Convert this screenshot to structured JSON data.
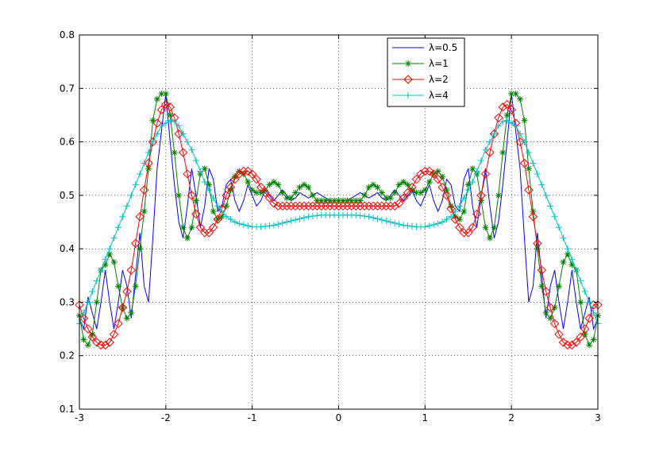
{
  "chart_data": {
    "type": "line",
    "title": "",
    "xlabel": "",
    "ylabel": "",
    "xlim": [
      -3,
      3
    ],
    "ylim": [
      0.1,
      0.8
    ],
    "xticks": [
      "-3",
      "-2",
      "-1",
      "0",
      "1",
      "2",
      "3"
    ],
    "yticks": [
      "0.1",
      "0.2",
      "0.3",
      "0.4",
      "0.5",
      "0.6",
      "0.7",
      "0.8"
    ],
    "grid": true,
    "legend_position": "top-right",
    "series": [
      {
        "name": "λ=0.5",
        "color": "#0000ff",
        "marker": "none",
        "x": [
          -3.0,
          -2.95,
          -2.9,
          -2.85,
          -2.8,
          -2.75,
          -2.7,
          -2.65,
          -2.6,
          -2.55,
          -2.5,
          -2.45,
          -2.4,
          -2.35,
          -2.3,
          -2.25,
          -2.2,
          -2.15,
          -2.1,
          -2.05,
          -2.0,
          -1.95,
          -1.9,
          -1.85,
          -1.8,
          -1.75,
          -1.7,
          -1.65,
          -1.6,
          -1.55,
          -1.5,
          -1.45,
          -1.4,
          -1.35,
          -1.3,
          -1.25,
          -1.2,
          -1.15,
          -1.1,
          -1.05,
          -1.0,
          -0.95,
          -0.9,
          -0.85,
          -0.8,
          -0.75,
          -0.7,
          -0.65,
          -0.6,
          -0.55,
          -0.5,
          -0.45,
          -0.4,
          -0.35,
          -0.3,
          -0.25,
          -0.2,
          -0.15,
          -0.1,
          -0.05,
          0.0,
          0.05,
          0.1,
          0.15,
          0.2,
          0.25,
          0.3,
          0.35,
          0.4,
          0.45,
          0.5,
          0.55,
          0.6,
          0.65,
          0.7,
          0.75,
          0.8,
          0.85,
          0.9,
          0.95,
          1.0,
          1.05,
          1.1,
          1.15,
          1.2,
          1.25,
          1.3,
          1.35,
          1.4,
          1.45,
          1.5,
          1.55,
          1.6,
          1.65,
          1.7,
          1.75,
          1.8,
          1.85,
          1.9,
          1.95,
          2.0,
          2.05,
          2.1,
          2.15,
          2.2,
          2.25,
          2.3,
          2.35,
          2.4,
          2.45,
          2.5,
          2.55,
          2.6,
          2.65,
          2.7,
          2.75,
          2.8,
          2.85,
          2.9,
          2.95,
          3.0
        ],
        "y": [
          0.27,
          0.25,
          0.31,
          0.28,
          0.25,
          0.3,
          0.36,
          0.3,
          0.25,
          0.3,
          0.36,
          0.33,
          0.27,
          0.35,
          0.43,
          0.33,
          0.3,
          0.42,
          0.55,
          0.62,
          0.69,
          0.6,
          0.52,
          0.45,
          0.42,
          0.48,
          0.55,
          0.5,
          0.44,
          0.48,
          0.55,
          0.53,
          0.47,
          0.48,
          0.52,
          0.53,
          0.49,
          0.47,
          0.49,
          0.52,
          0.5,
          0.48,
          0.49,
          0.51,
          0.5,
          0.49,
          0.5,
          0.51,
          0.5,
          0.49,
          0.495,
          0.505,
          0.5,
          0.495,
          0.5,
          0.505,
          0.5,
          0.495,
          0.49,
          0.49,
          0.49,
          0.49,
          0.49,
          0.495,
          0.5,
          0.505,
          0.5,
          0.495,
          0.5,
          0.505,
          0.495,
          0.49,
          0.5,
          0.51,
          0.5,
          0.49,
          0.5,
          0.51,
          0.49,
          0.48,
          0.5,
          0.52,
          0.49,
          0.47,
          0.49,
          0.53,
          0.52,
          0.48,
          0.47,
          0.53,
          0.55,
          0.48,
          0.44,
          0.5,
          0.55,
          0.48,
          0.42,
          0.45,
          0.52,
          0.6,
          0.69,
          0.62,
          0.55,
          0.42,
          0.3,
          0.33,
          0.43,
          0.35,
          0.27,
          0.33,
          0.36,
          0.3,
          0.25,
          0.3,
          0.36,
          0.3,
          0.25,
          0.28,
          0.31,
          0.25,
          0.27
        ]
      },
      {
        "name": "λ=1",
        "color": "#008000",
        "marker": "star",
        "x": [
          -3.0,
          -2.95,
          -2.9,
          -2.85,
          -2.8,
          -2.75,
          -2.7,
          -2.65,
          -2.6,
          -2.55,
          -2.5,
          -2.45,
          -2.4,
          -2.35,
          -2.3,
          -2.25,
          -2.2,
          -2.15,
          -2.1,
          -2.05,
          -2.0,
          -1.95,
          -1.9,
          -1.85,
          -1.8,
          -1.75,
          -1.7,
          -1.65,
          -1.6,
          -1.55,
          -1.5,
          -1.45,
          -1.4,
          -1.35,
          -1.3,
          -1.25,
          -1.2,
          -1.15,
          -1.1,
          -1.05,
          -1.0,
          -0.95,
          -0.9,
          -0.85,
          -0.8,
          -0.75,
          -0.7,
          -0.65,
          -0.6,
          -0.55,
          -0.5,
          -0.45,
          -0.4,
          -0.35,
          -0.3,
          -0.25,
          -0.2,
          -0.15,
          -0.1,
          -0.05,
          0.0,
          0.05,
          0.1,
          0.15,
          0.2,
          0.25,
          0.3,
          0.35,
          0.4,
          0.45,
          0.5,
          0.55,
          0.6,
          0.65,
          0.7,
          0.75,
          0.8,
          0.85,
          0.9,
          0.95,
          1.0,
          1.05,
          1.1,
          1.15,
          1.2,
          1.25,
          1.3,
          1.35,
          1.4,
          1.45,
          1.5,
          1.55,
          1.6,
          1.65,
          1.7,
          1.75,
          1.8,
          1.85,
          1.9,
          1.95,
          2.0,
          2.05,
          2.1,
          2.15,
          2.2,
          2.25,
          2.3,
          2.35,
          2.4,
          2.45,
          2.5,
          2.55,
          2.6,
          2.65,
          2.7,
          2.75,
          2.8,
          2.85,
          2.9,
          2.95,
          3.0
        ],
        "y": [
          0.275,
          0.23,
          0.22,
          0.24,
          0.3,
          0.36,
          0.37,
          0.39,
          0.375,
          0.33,
          0.29,
          0.27,
          0.28,
          0.33,
          0.4,
          0.47,
          0.55,
          0.64,
          0.68,
          0.69,
          0.69,
          0.65,
          0.58,
          0.5,
          0.44,
          0.42,
          0.44,
          0.49,
          0.54,
          0.55,
          0.52,
          0.47,
          0.455,
          0.46,
          0.48,
          0.51,
          0.535,
          0.545,
          0.54,
          0.525,
          0.51,
          0.505,
          0.505,
          0.51,
          0.52,
          0.525,
          0.52,
          0.505,
          0.495,
          0.495,
          0.505,
          0.515,
          0.52,
          0.515,
          0.5,
          0.49,
          0.49,
          0.49,
          0.49,
          0.49,
          0.49,
          0.49,
          0.49,
          0.49,
          0.49,
          0.49,
          0.5,
          0.515,
          0.52,
          0.515,
          0.505,
          0.495,
          0.495,
          0.505,
          0.52,
          0.525,
          0.52,
          0.51,
          0.505,
          0.505,
          0.51,
          0.525,
          0.54,
          0.545,
          0.535,
          0.51,
          0.48,
          0.46,
          0.455,
          0.47,
          0.52,
          0.55,
          0.54,
          0.49,
          0.44,
          0.42,
          0.44,
          0.5,
          0.58,
          0.65,
          0.69,
          0.69,
          0.68,
          0.64,
          0.55,
          0.47,
          0.4,
          0.33,
          0.28,
          0.27,
          0.29,
          0.33,
          0.375,
          0.39,
          0.37,
          0.36,
          0.3,
          0.24,
          0.22,
          0.23,
          0.275
        ]
      },
      {
        "name": "λ=2",
        "color": "#ff0000",
        "marker": "diamond",
        "x": [
          -3.0,
          -2.95,
          -2.9,
          -2.85,
          -2.8,
          -2.75,
          -2.7,
          -2.65,
          -2.6,
          -2.55,
          -2.5,
          -2.45,
          -2.4,
          -2.35,
          -2.3,
          -2.25,
          -2.2,
          -2.15,
          -2.1,
          -2.05,
          -2.0,
          -1.95,
          -1.9,
          -1.85,
          -1.8,
          -1.75,
          -1.7,
          -1.65,
          -1.6,
          -1.55,
          -1.5,
          -1.45,
          -1.4,
          -1.35,
          -1.3,
          -1.25,
          -1.2,
          -1.15,
          -1.1,
          -1.05,
          -1.0,
          -0.95,
          -0.9,
          -0.85,
          -0.8,
          -0.75,
          -0.7,
          -0.65,
          -0.6,
          -0.55,
          -0.5,
          -0.45,
          -0.4,
          -0.35,
          -0.3,
          -0.25,
          -0.2,
          -0.15,
          -0.1,
          -0.05,
          0.0,
          0.05,
          0.1,
          0.15,
          0.2,
          0.25,
          0.3,
          0.35,
          0.4,
          0.45,
          0.5,
          0.55,
          0.6,
          0.65,
          0.7,
          0.75,
          0.8,
          0.85,
          0.9,
          0.95,
          1.0,
          1.05,
          1.1,
          1.15,
          1.2,
          1.25,
          1.3,
          1.35,
          1.4,
          1.45,
          1.5,
          1.55,
          1.6,
          1.65,
          1.7,
          1.75,
          1.8,
          1.85,
          1.9,
          1.95,
          2.0,
          2.05,
          2.1,
          2.15,
          2.2,
          2.25,
          2.3,
          2.35,
          2.4,
          2.45,
          2.5,
          2.55,
          2.6,
          2.65,
          2.7,
          2.75,
          2.8,
          2.85,
          2.9,
          2.95,
          3.0
        ],
        "y": [
          0.295,
          0.27,
          0.25,
          0.235,
          0.225,
          0.22,
          0.22,
          0.225,
          0.24,
          0.26,
          0.29,
          0.32,
          0.36,
          0.41,
          0.46,
          0.51,
          0.56,
          0.6,
          0.635,
          0.66,
          0.67,
          0.665,
          0.645,
          0.615,
          0.58,
          0.54,
          0.5,
          0.465,
          0.44,
          0.43,
          0.43,
          0.44,
          0.455,
          0.475,
          0.5,
          0.515,
          0.53,
          0.54,
          0.545,
          0.545,
          0.54,
          0.53,
          0.515,
          0.505,
          0.495,
          0.485,
          0.48,
          0.48,
          0.48,
          0.48,
          0.48,
          0.48,
          0.48,
          0.48,
          0.48,
          0.48,
          0.48,
          0.48,
          0.48,
          0.48,
          0.48,
          0.48,
          0.48,
          0.48,
          0.48,
          0.48,
          0.48,
          0.48,
          0.48,
          0.48,
          0.48,
          0.48,
          0.48,
          0.48,
          0.485,
          0.495,
          0.505,
          0.515,
          0.53,
          0.54,
          0.545,
          0.545,
          0.54,
          0.53,
          0.515,
          0.5,
          0.475,
          0.455,
          0.44,
          0.43,
          0.43,
          0.44,
          0.465,
          0.5,
          0.54,
          0.58,
          0.615,
          0.645,
          0.665,
          0.67,
          0.66,
          0.635,
          0.6,
          0.56,
          0.51,
          0.46,
          0.41,
          0.36,
          0.32,
          0.29,
          0.26,
          0.24,
          0.225,
          0.22,
          0.22,
          0.225,
          0.235,
          0.25,
          0.27,
          0.295,
          0.295
        ]
      },
      {
        "name": "λ=4",
        "color": "#00bfbf",
        "marker": "plus",
        "x": [
          -3.0,
          -2.95,
          -2.9,
          -2.85,
          -2.8,
          -2.75,
          -2.7,
          -2.65,
          -2.6,
          -2.55,
          -2.5,
          -2.45,
          -2.4,
          -2.35,
          -2.3,
          -2.25,
          -2.2,
          -2.15,
          -2.1,
          -2.05,
          -2.0,
          -1.95,
          -1.9,
          -1.85,
          -1.8,
          -1.75,
          -1.7,
          -1.65,
          -1.6,
          -1.55,
          -1.5,
          -1.45,
          -1.4,
          -1.35,
          -1.3,
          -1.25,
          -1.2,
          -1.15,
          -1.1,
          -1.05,
          -1.0,
          -0.95,
          -0.9,
          -0.85,
          -0.8,
          -0.75,
          -0.7,
          -0.65,
          -0.6,
          -0.55,
          -0.5,
          -0.45,
          -0.4,
          -0.35,
          -0.3,
          -0.25,
          -0.2,
          -0.15,
          -0.1,
          -0.05,
          0.0,
          0.05,
          0.1,
          0.15,
          0.2,
          0.25,
          0.3,
          0.35,
          0.4,
          0.45,
          0.5,
          0.55,
          0.6,
          0.65,
          0.7,
          0.75,
          0.8,
          0.85,
          0.9,
          0.95,
          1.0,
          1.05,
          1.1,
          1.15,
          1.2,
          1.25,
          1.3,
          1.35,
          1.4,
          1.45,
          1.5,
          1.55,
          1.6,
          1.65,
          1.7,
          1.75,
          1.8,
          1.85,
          1.9,
          1.95,
          2.0,
          2.05,
          2.1,
          2.15,
          2.2,
          2.25,
          2.3,
          2.35,
          2.4,
          2.45,
          2.5,
          2.55,
          2.6,
          2.65,
          2.7,
          2.75,
          2.8,
          2.85,
          2.9,
          2.95,
          3.0
        ],
        "y": [
          0.26,
          0.28,
          0.3,
          0.32,
          0.34,
          0.36,
          0.38,
          0.4,
          0.42,
          0.44,
          0.46,
          0.48,
          0.5,
          0.52,
          0.54,
          0.56,
          0.58,
          0.6,
          0.615,
          0.63,
          0.635,
          0.64,
          0.638,
          0.63,
          0.615,
          0.6,
          0.585,
          0.565,
          0.545,
          0.525,
          0.51,
          0.495,
          0.48,
          0.47,
          0.46,
          0.455,
          0.45,
          0.447,
          0.445,
          0.443,
          0.441,
          0.441,
          0.441,
          0.442,
          0.443,
          0.444,
          0.446,
          0.448,
          0.45,
          0.452,
          0.454,
          0.456,
          0.458,
          0.46,
          0.461,
          0.462,
          0.463,
          0.463,
          0.463,
          0.463,
          0.463,
          0.463,
          0.463,
          0.463,
          0.463,
          0.462,
          0.461,
          0.46,
          0.458,
          0.456,
          0.454,
          0.452,
          0.45,
          0.448,
          0.446,
          0.444,
          0.443,
          0.442,
          0.441,
          0.441,
          0.441,
          0.443,
          0.445,
          0.447,
          0.45,
          0.455,
          0.46,
          0.47,
          0.48,
          0.495,
          0.51,
          0.525,
          0.545,
          0.565,
          0.585,
          0.6,
          0.615,
          0.63,
          0.638,
          0.64,
          0.635,
          0.63,
          0.615,
          0.6,
          0.58,
          0.56,
          0.54,
          0.52,
          0.5,
          0.48,
          0.46,
          0.44,
          0.42,
          0.4,
          0.38,
          0.36,
          0.34,
          0.32,
          0.3,
          0.28,
          0.26
        ]
      }
    ]
  }
}
